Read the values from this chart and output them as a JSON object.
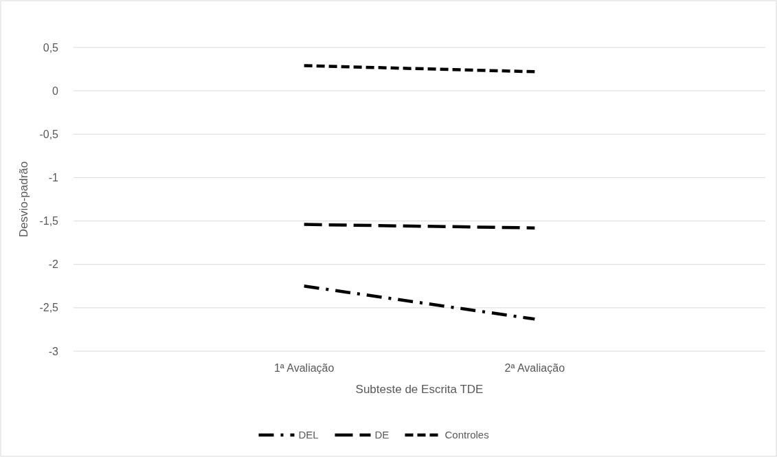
{
  "chart_data": {
    "type": "line",
    "xlabel": "Subteste de Escrita TDE",
    "ylabel": "Desvio-padrão",
    "categories": [
      "1ª Avaliação",
      "2ª Avaliação"
    ],
    "series": [
      {
        "name": "DEL",
        "color": "#000000",
        "line_style": "dashdot",
        "values": [
          -2.25,
          -2.63
        ]
      },
      {
        "name": "DE",
        "color": "#000000",
        "line_style": "dashed",
        "values": [
          -1.54,
          -1.58
        ]
      },
      {
        "name": "Controles",
        "color": "#000000",
        "line_style": "dashed",
        "values": [
          0.29,
          0.22
        ]
      }
    ],
    "ylim": [
      -3,
      0.5
    ],
    "yticks": [
      {
        "value": -3,
        "label": "-3"
      },
      {
        "value": -2.5,
        "label": "-2,5"
      },
      {
        "value": -2,
        "label": "-2"
      },
      {
        "value": -1.5,
        "label": "-1,5"
      },
      {
        "value": -1,
        "label": "-1"
      },
      {
        "value": -0.5,
        "label": "-0,5"
      },
      {
        "value": 0,
        "label": "0"
      },
      {
        "value": 0.5,
        "label": "0,5"
      }
    ],
    "grid": "y",
    "legend": "bottom",
    "marker": "none"
  }
}
